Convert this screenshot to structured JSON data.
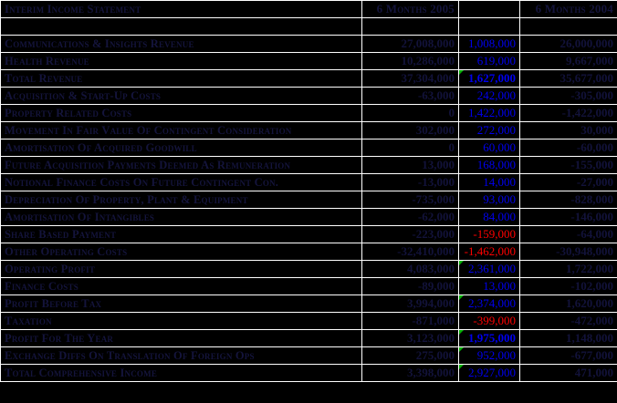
{
  "title": "Interim Income Statement",
  "columns": {
    "label_header": "Interim Income Statement",
    "period_2005": "6 Months 2005",
    "variance": "",
    "period_2004": "6 Months 2004"
  },
  "colors": {
    "background": "#000000",
    "gridline": "#ffffff",
    "hidden_text": "#14143c",
    "variance_positive": "#0000ee",
    "variance_negative": "#ff0000",
    "flag_indicator": "#00b000"
  },
  "rows": [
    {
      "label": "Communications & Insights Revenue",
      "v2005": "27,008,000",
      "variance": "1,008,000",
      "v2004": "26,000,000",
      "negative": false,
      "bold": false,
      "flag": false
    },
    {
      "label": "Health Revenue",
      "v2005": "10,286,000",
      "variance": "619,000",
      "v2004": "9,667,000",
      "negative": false,
      "bold": false,
      "flag": false
    },
    {
      "label": "Total Revenue",
      "v2005": "37,304,000",
      "variance": "1,627,000",
      "v2004": "35,677,000",
      "negative": false,
      "bold": true,
      "flag": true
    },
    {
      "label": "Acquisition & Start-Up Costs",
      "v2005": "-63,000",
      "variance": "242,000",
      "v2004": "-305,000",
      "negative": false,
      "bold": false,
      "flag": false
    },
    {
      "label": "Property Related Costs",
      "v2005": "0",
      "variance": "1,422,000",
      "v2004": "-1,422,000",
      "negative": false,
      "bold": false,
      "flag": false
    },
    {
      "label": "Movement In Fair Value Of Contingent Consideration",
      "v2005": "302,000",
      "variance": "272,000",
      "v2004": "30,000",
      "negative": false,
      "bold": false,
      "flag": false
    },
    {
      "label": "Amortisation Of Acquired Goodwill",
      "v2005": "0",
      "variance": "60,000",
      "v2004": "-60,000",
      "negative": false,
      "bold": false,
      "flag": false
    },
    {
      "label": "Future Acquisition Payments Deemed As Remuneration",
      "v2005": "13,000",
      "variance": "168,000",
      "v2004": "-155,000",
      "negative": false,
      "bold": false,
      "flag": false
    },
    {
      "label": "Notional Finance Costs On Future Contingent Con.",
      "v2005": "-13,000",
      "variance": "14,000",
      "v2004": "-27,000",
      "negative": false,
      "bold": false,
      "flag": false
    },
    {
      "label": "Depreciation Of Property, Plant & Equipment",
      "v2005": "-735,000",
      "variance": "93,000",
      "v2004": "-828,000",
      "negative": false,
      "bold": false,
      "flag": false
    },
    {
      "label": "Amortisation Of Intangibles",
      "v2005": "-62,000",
      "variance": "84,000",
      "v2004": "-146,000",
      "negative": false,
      "bold": false,
      "flag": false
    },
    {
      "label": "Share Based Payment",
      "v2005": "-223,000",
      "variance": "-159,000",
      "v2004": "-64,000",
      "negative": true,
      "bold": false,
      "flag": false
    },
    {
      "label": "Other Operating Costs",
      "v2005": "-32,410,000",
      "variance": "-1,462,000",
      "v2004": "-30,948,000",
      "negative": true,
      "bold": false,
      "flag": false
    },
    {
      "label": "Operating Profit",
      "v2005": "4,083,000",
      "variance": "2,361,000",
      "v2004": "1,722,000",
      "negative": false,
      "bold": false,
      "flag": true
    },
    {
      "label": "Finance Costs",
      "v2005": "-89,000",
      "variance": "13,000",
      "v2004": "-102,000",
      "negative": false,
      "bold": false,
      "flag": false
    },
    {
      "label": "Profit Before Tax",
      "v2005": "3,994,000",
      "variance": "2,374,000",
      "v2004": "1,620,000",
      "negative": false,
      "bold": false,
      "flag": true
    },
    {
      "label": "Taxation",
      "v2005": "-871,000",
      "variance": "-399,000",
      "v2004": "-472,000",
      "negative": true,
      "bold": false,
      "flag": false
    },
    {
      "label": "Profit For The Year",
      "v2005": "3,123,000",
      "variance": "1,975,000",
      "v2004": "1,148,000",
      "negative": false,
      "bold": true,
      "flag": true
    },
    {
      "label": "Exchange Diffs On Translation Of Foreign Ops",
      "v2005": "275,000",
      "variance": "952,000",
      "v2004": "-677,000",
      "negative": false,
      "bold": false,
      "flag": true
    },
    {
      "label": "Total Comprehensive Income",
      "v2005": "3,398,000",
      "variance": "2,927,000",
      "v2004": "471,000",
      "negative": false,
      "bold": false,
      "flag": true
    }
  ]
}
